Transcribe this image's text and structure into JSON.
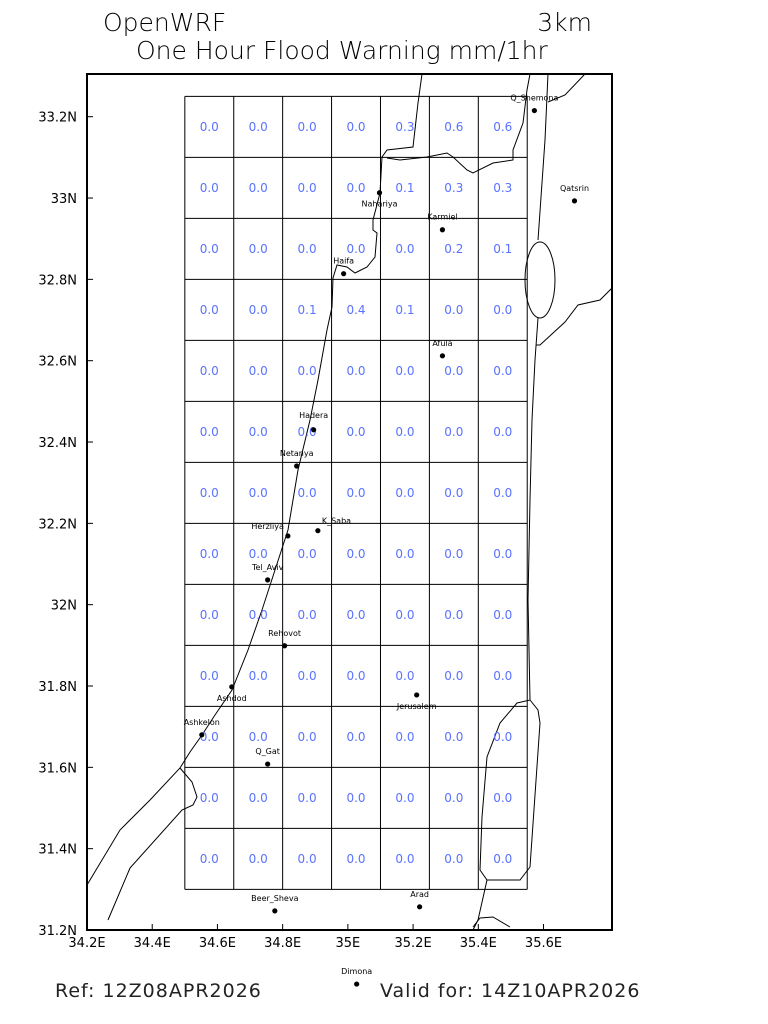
{
  "header": {
    "model": "OpenWRF",
    "resolution": "3km",
    "title": "One Hour Flood Warning mm/1hr"
  },
  "footer": {
    "ref": "Ref: 12Z08APR2026",
    "valid": "Valid for: 14Z10APR2026"
  },
  "colors": {
    "values": "#5a72ff",
    "lines": "#000000"
  },
  "chart_data": {
    "type": "table",
    "xlim": [
      34.2,
      35.81
    ],
    "ylim": [
      31.2,
      33.305
    ],
    "x_ticks": [
      34.2,
      34.4,
      34.6,
      34.8,
      35.0,
      35.2,
      35.4,
      35.6
    ],
    "x_tick_labels": [
      "34.2E",
      "34.4E",
      "34.6E",
      "34.8E",
      "35E",
      "35.2E",
      "35.4E",
      "35.6E"
    ],
    "y_ticks": [
      31.2,
      31.4,
      31.6,
      31.8,
      32.0,
      32.2,
      32.4,
      32.6,
      32.8,
      33.0,
      33.2
    ],
    "y_tick_labels": [
      "31.2N",
      "31.4N",
      "31.6N",
      "31.8N",
      "32N",
      "32.2N",
      "32.4N",
      "32.6N",
      "32.8N",
      "33N",
      "33.2N"
    ],
    "grid": {
      "lon_start": 34.5,
      "lat_top": 33.25,
      "cell_deg": 0.15,
      "cols": 7,
      "rows": 13
    },
    "values": [
      [
        "0.0",
        "0.0",
        "0.0",
        "0.0",
        "0.3",
        "0.6",
        "0.6"
      ],
      [
        "0.0",
        "0.0",
        "0.0",
        "0.0",
        "0.1",
        "0.3",
        "0.3"
      ],
      [
        "0.0",
        "0.0",
        "0.0",
        "0.0",
        "0.0",
        "0.2",
        "0.1"
      ],
      [
        "0.0",
        "0.0",
        "0.1",
        "0.4",
        "0.1",
        "0.0",
        "0.0"
      ],
      [
        "0.0",
        "0.0",
        "0.0",
        "0.0",
        "0.0",
        "0.0",
        "0.0"
      ],
      [
        "0.0",
        "0.0",
        "0.0",
        "0.0",
        "0.0",
        "0.0",
        "0.0"
      ],
      [
        "0.0",
        "0.0",
        "0.0",
        "0.0",
        "0.0",
        "0.0",
        "0.0"
      ],
      [
        "0.0",
        "0.0",
        "0.0",
        "0.0",
        "0.0",
        "0.0",
        "0.0"
      ],
      [
        "0.0",
        "0.0",
        "0.0",
        "0.0",
        "0.0",
        "0.0",
        "0.0"
      ],
      [
        "0.0",
        "0.0",
        "0.0",
        "0.0",
        "0.0",
        "0.0",
        "0.0"
      ],
      [
        "0.0",
        "0.0",
        "0.0",
        "0.0",
        "0.0",
        "0.0",
        "0.0"
      ],
      [
        "0.0",
        "0.0",
        "0.0",
        "0.0",
        "0.0",
        "0.0",
        "0.0"
      ],
      [
        "0.0",
        "0.0",
        "0.0",
        "0.0",
        "0.0",
        "0.0",
        "0.0"
      ]
    ],
    "cities": [
      {
        "name": "Q_Shemona",
        "lon": 35.572,
        "lat": 33.215
      },
      {
        "name": "Qatsrin",
        "lon": 35.695,
        "lat": 32.993
      },
      {
        "name": "Nahariya",
        "lon": 35.097,
        "lat": 33.013
      },
      {
        "name": "Karmiel",
        "lon": 35.29,
        "lat": 32.922
      },
      {
        "name": "Haifa",
        "lon": 34.987,
        "lat": 32.814
      },
      {
        "name": "Afula",
        "lon": 35.29,
        "lat": 32.612
      },
      {
        "name": "Hadera",
        "lon": 34.895,
        "lat": 32.43
      },
      {
        "name": "Netanya",
        "lon": 34.843,
        "lat": 32.341
      },
      {
        "name": "Herzliya",
        "lon": 34.816,
        "lat": 32.169
      },
      {
        "name": "K_Saba",
        "lon": 34.908,
        "lat": 32.182
      },
      {
        "name": "Tel_Aviv",
        "lon": 34.754,
        "lat": 32.061
      },
      {
        "name": "Rehovot",
        "lon": 34.806,
        "lat": 31.899
      },
      {
        "name": "Ashdod",
        "lon": 34.644,
        "lat": 31.798
      },
      {
        "name": "Jerusalem",
        "lon": 35.211,
        "lat": 31.778
      },
      {
        "name": "Ashkelon",
        "lon": 34.552,
        "lat": 31.68
      },
      {
        "name": "Q_Gat",
        "lon": 34.754,
        "lat": 31.608
      },
      {
        "name": "Beer_Sheva",
        "lon": 34.776,
        "lat": 31.247
      },
      {
        "name": "Arad",
        "lon": 35.22,
        "lat": 31.257
      },
      {
        "name": "Dimona",
        "lon": 35.027,
        "lat": 31.067
      }
    ]
  }
}
